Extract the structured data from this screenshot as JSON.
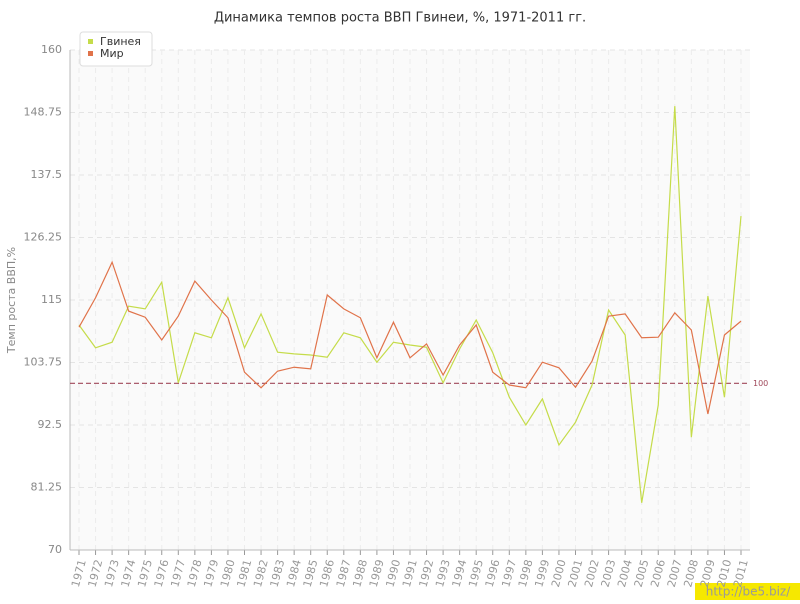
{
  "chart_data": {
    "type": "line",
    "title": "Динамика темпов роста ВВП Гвинеи, %, 1971-2011 гг.",
    "y_label": "Темп роста ВВП,%",
    "categories": [
      "1971",
      "1972",
      "1973",
      "1974",
      "1975",
      "1976",
      "1977",
      "1978",
      "1979",
      "1980",
      "1981",
      "1982",
      "1983",
      "1984",
      "1985",
      "1986",
      "1987",
      "1988",
      "1989",
      "1990",
      "1991",
      "1992",
      "1993",
      "1994",
      "1995",
      "1996",
      "1997",
      "1998",
      "1999",
      "2000",
      "2001",
      "2002",
      "2003",
      "2004",
      "2005",
      "2006",
      "2007",
      "2008",
      "2009",
      "2010",
      "2011"
    ],
    "series": [
      {
        "name": "Гвинея",
        "color": "#c5dc4a",
        "values": [
          110.5,
          106.4,
          107.4,
          113.9,
          113.4,
          118.2,
          100.1,
          109.1,
          108.2,
          115.4,
          106.4,
          112.5,
          105.6,
          105.3,
          105.1,
          104.7,
          109.1,
          108.2,
          103.8,
          107.4,
          106.9,
          106.5,
          100.1,
          106.2,
          111.4,
          105.5,
          97.5,
          92.5,
          97.2,
          88.9,
          93.0,
          99.7,
          113.2,
          108.7,
          78.5,
          96.1,
          149.9,
          90.3,
          115.7,
          97.5,
          130.1
        ]
      },
      {
        "name": "Мир",
        "color": "#e0734a",
        "values": [
          110.1,
          115.4,
          121.8,
          113.0,
          111.9,
          107.8,
          112.1,
          118.4,
          115.0,
          111.8,
          102.0,
          99.2,
          102.2,
          102.9,
          102.6,
          115.9,
          113.4,
          111.8,
          104.6,
          111.0,
          104.6,
          107.1,
          101.5,
          106.9,
          110.5,
          102.0,
          99.7,
          99.2,
          103.8,
          102.8,
          99.3,
          104.0,
          112.1,
          112.5,
          108.2,
          108.3,
          112.7,
          109.6,
          94.5,
          108.7,
          111.2
        ]
      }
    ],
    "ylim": [
      70,
      160
    ],
    "yticks": [
      70,
      81.25,
      92.5,
      103.75,
      115,
      126.25,
      137.5,
      148.75,
      160
    ],
    "grid": true,
    "hline": {
      "value": 100,
      "color": "#a0485a"
    },
    "legend": "top-left",
    "watermark": "http://be5.biz/"
  }
}
